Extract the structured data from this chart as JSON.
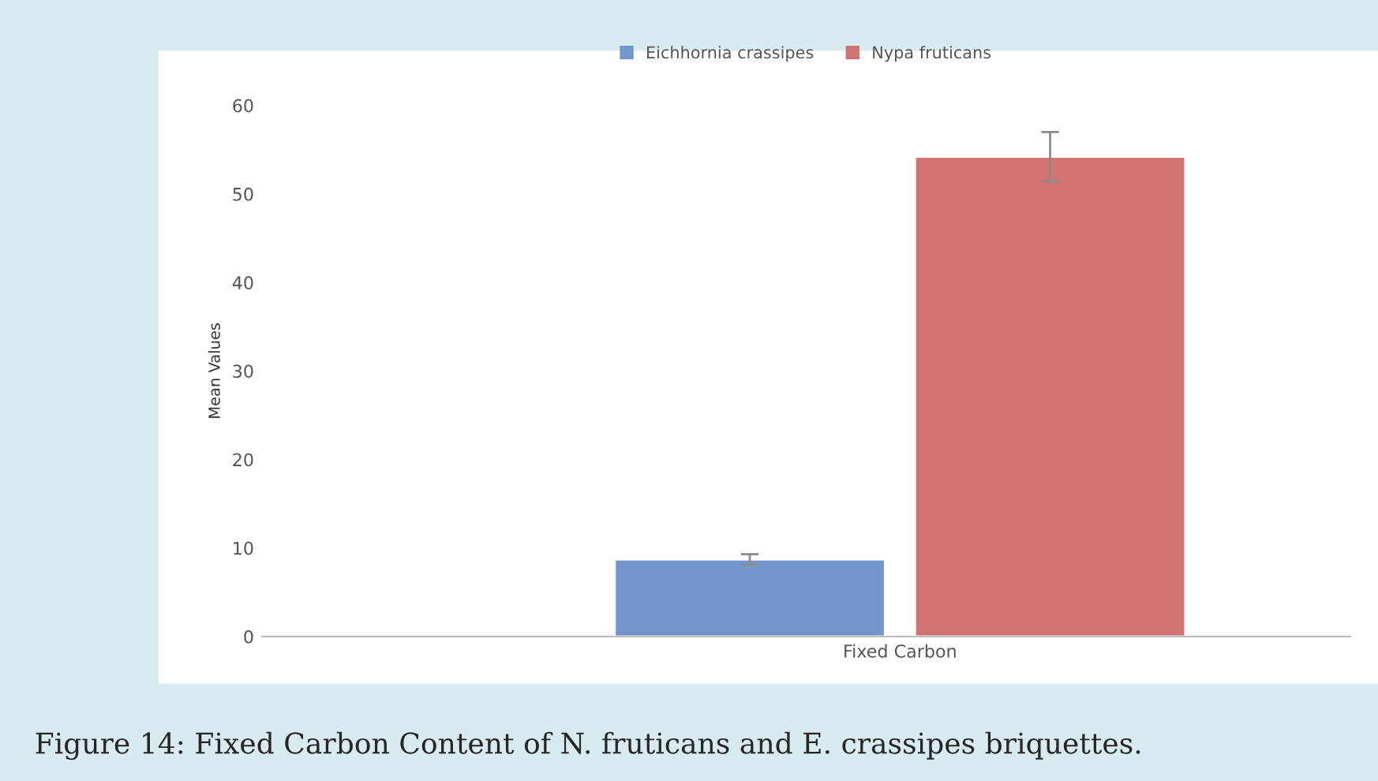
{
  "chart_data": {
    "type": "bar",
    "ylabel": "Mean Values",
    "categories": [
      "Fixed Carbon"
    ],
    "series": [
      {
        "name": "Eichhornia crassipes",
        "color": "#7196cc",
        "values": [
          8.7
        ],
        "errors": [
          0.6
        ]
      },
      {
        "name": "Nypa fruticans",
        "color": "#d27272",
        "values": [
          54.2
        ],
        "errors": [
          2.8
        ]
      }
    ],
    "ylim": [
      0,
      60
    ],
    "yticks": [
      0,
      10,
      20,
      30,
      40,
      50,
      60
    ],
    "grid": false,
    "legend": "top",
    "annotations": [
      "Figure 14: Fixed Carbon Content of N. fruticans and E. crassipes briquettes."
    ]
  }
}
